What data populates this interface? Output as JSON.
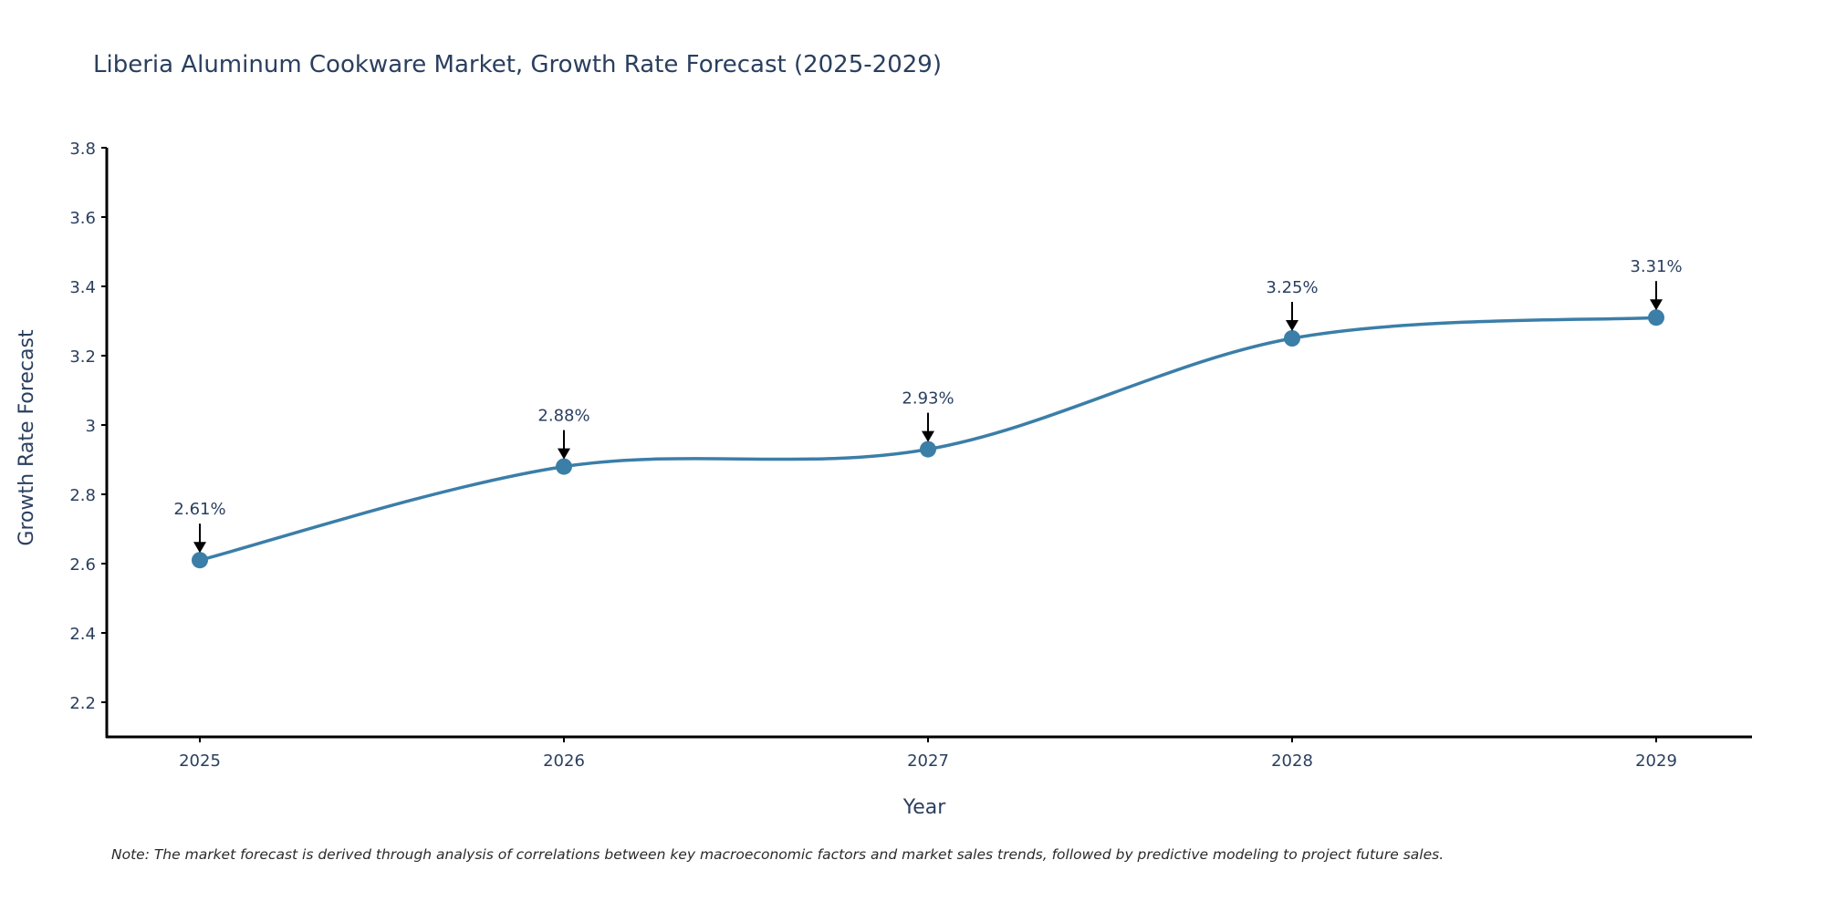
{
  "chart_data": {
    "type": "line",
    "title": "Liberia Aluminum Cookware Market, Growth Rate Forecast (2025-2029)",
    "xlabel": "Year",
    "ylabel": "Growth Rate Forecast",
    "categories": [
      "2025",
      "2026",
      "2027",
      "2028",
      "2029"
    ],
    "series": [
      {
        "name": "Growth Rate Forecast",
        "values": [
          2.61,
          2.88,
          2.93,
          3.25,
          3.31
        ],
        "labels": [
          "2.61%",
          "2.88%",
          "2.93%",
          "3.25%",
          "3.31%"
        ]
      }
    ],
    "ylim": [
      2.1,
      3.8
    ],
    "yticks": [
      "2.2",
      "2.4",
      "2.6",
      "2.8",
      "3",
      "3.2",
      "3.4",
      "3.6",
      "3.8"
    ],
    "ytick_values": [
      2.2,
      2.4,
      2.6,
      2.8,
      3.0,
      3.2,
      3.4,
      3.6,
      3.8
    ],
    "grid": false,
    "line_color": "#3b7ea8",
    "marker_color": "#3b7ea8",
    "arrow_color": "#000000",
    "note": "Note: The market forecast is derived through analysis of correlations between key macroeconomic factors and market sales trends, followed by predictive modeling to project future sales."
  }
}
